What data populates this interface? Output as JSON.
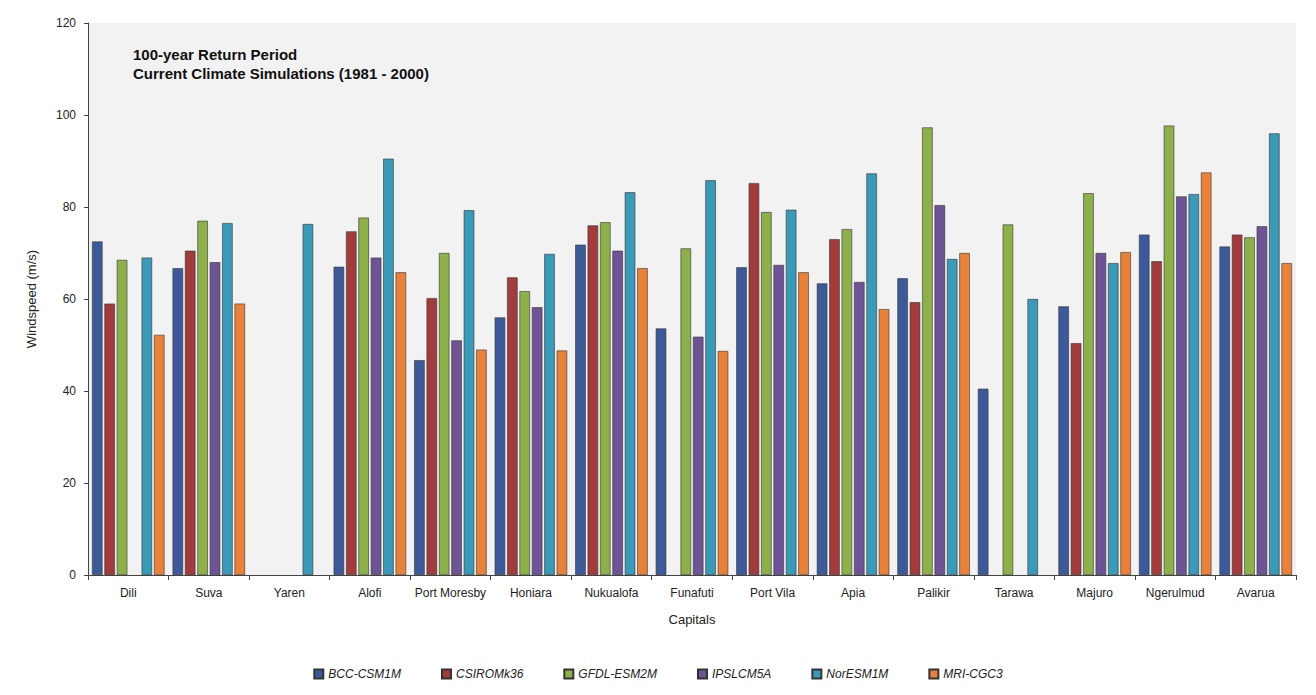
{
  "chart_data": {
    "type": "bar",
    "title": "100-year Return Period",
    "subtitle": "Current Climate Simulations (1981 - 2000)",
    "x_label": "Capitals",
    "y_label": "Windspeed (m/s)",
    "categories": [
      "Dili",
      "Suva",
      "Yaren",
      "Alofi",
      "Port Moresby",
      "Honiara",
      "Nukualofa",
      "Funafuti",
      "Port Vila",
      "Apia",
      "Palikir",
      "Tarawa",
      "Majuro",
      "Ngerulmud",
      "Avarua"
    ],
    "series": [
      {
        "name": "BCC-CSM1M",
        "color": "#3C5A99",
        "values": [
          72.5,
          66.7,
          null,
          67,
          46.7,
          56,
          71.8,
          53.6,
          66.9,
          63.4,
          64.5,
          40.5,
          58.4,
          74,
          71.4
        ]
      },
      {
        "name": "CSIROMk36",
        "color": "#A23B3B",
        "values": [
          59,
          70.5,
          null,
          74.7,
          60.2,
          64.7,
          76,
          null,
          85.2,
          73,
          59.3,
          null,
          50.4,
          68.2,
          74
        ]
      },
      {
        "name": "GFDL-ESM2M",
        "color": "#8DB04A",
        "values": [
          68.5,
          77,
          null,
          77.7,
          70,
          61.7,
          76.7,
          71,
          78.9,
          75.2,
          97.3,
          76.2,
          83,
          97.7,
          73.4
        ]
      },
      {
        "name": "IPSLCM5A",
        "color": "#6E5495",
        "values": [
          null,
          68,
          null,
          69,
          51,
          58.2,
          70.5,
          51.8,
          67.4,
          63.7,
          80.4,
          null,
          70,
          82.3,
          75.8
        ]
      },
      {
        "name": "NorESM1M",
        "color": "#3A9AB8",
        "values": [
          69,
          76.5,
          76.3,
          90.5,
          79.3,
          69.8,
          83.2,
          85.8,
          79.4,
          87.3,
          68.7,
          60,
          67.8,
          82.8,
          96
        ]
      },
      {
        "name": "MRI-CGC3",
        "color": "#E8823A",
        "values": [
          52.2,
          59,
          null,
          65.8,
          49,
          48.8,
          66.7,
          48.7,
          65.8,
          57.8,
          70,
          null,
          70.2,
          87.5,
          67.8
        ]
      }
    ],
    "ylim": [
      0,
      120
    ],
    "yticks": [
      0,
      20,
      40,
      60,
      80,
      100,
      120
    ],
    "grid": false,
    "legend": "bottom"
  }
}
